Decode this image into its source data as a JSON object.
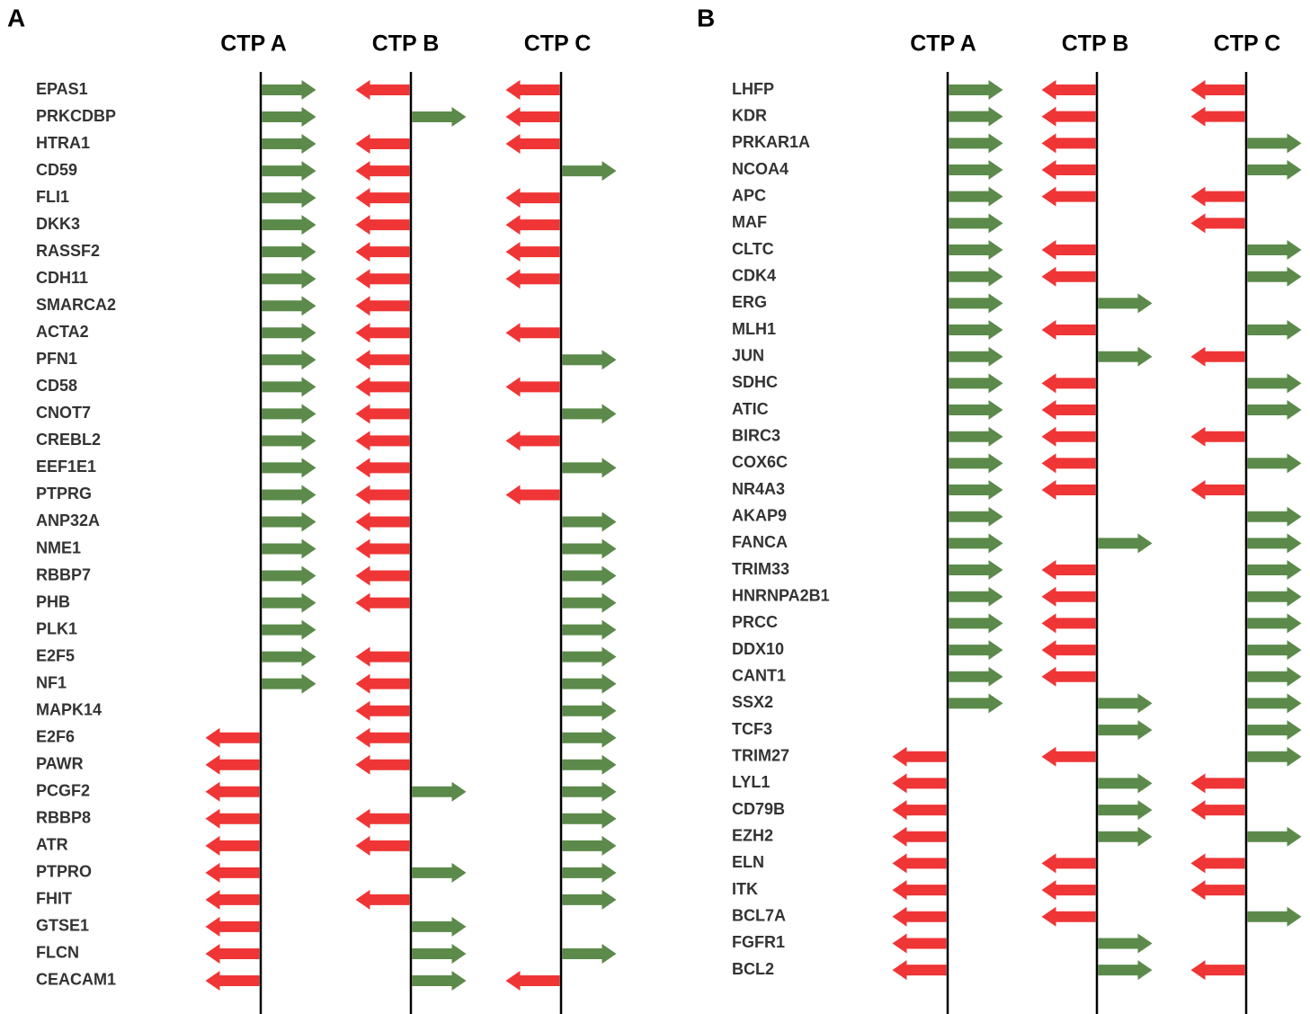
{
  "colors": {
    "up": "#5b8a4a",
    "down": "#ef3535"
  },
  "panels": [
    {
      "label": "A",
      "columns": [
        "CTP A",
        "CTP B",
        "CTP C"
      ],
      "rows": [
        {
          "gene": "EPAS1",
          "ctp": [
            "up",
            "down",
            "down"
          ]
        },
        {
          "gene": "PRKCDBP",
          "ctp": [
            "up",
            "up",
            "down"
          ]
        },
        {
          "gene": "HTRA1",
          "ctp": [
            "up",
            "down",
            "down"
          ]
        },
        {
          "gene": "CD59",
          "ctp": [
            "up",
            "down",
            "up"
          ]
        },
        {
          "gene": "FLI1",
          "ctp": [
            "up",
            "down",
            "down"
          ]
        },
        {
          "gene": "DKK3",
          "ctp": [
            "up",
            "down",
            "down"
          ]
        },
        {
          "gene": "RASSF2",
          "ctp": [
            "up",
            "down",
            "down"
          ]
        },
        {
          "gene": "CDH11",
          "ctp": [
            "up",
            "down",
            "down"
          ]
        },
        {
          "gene": "SMARCA2",
          "ctp": [
            "up",
            "down",
            null
          ]
        },
        {
          "gene": "ACTA2",
          "ctp": [
            "up",
            "down",
            "down"
          ]
        },
        {
          "gene": "PFN1",
          "ctp": [
            "up",
            "down",
            "up"
          ]
        },
        {
          "gene": "CD58",
          "ctp": [
            "up",
            "down",
            "down"
          ]
        },
        {
          "gene": "CNOT7",
          "ctp": [
            "up",
            "down",
            "up"
          ]
        },
        {
          "gene": "CREBL2",
          "ctp": [
            "up",
            "down",
            "down"
          ]
        },
        {
          "gene": "EEF1E1",
          "ctp": [
            "up",
            "down",
            "up"
          ]
        },
        {
          "gene": "PTPRG",
          "ctp": [
            "up",
            "down",
            "down"
          ]
        },
        {
          "gene": "ANP32A",
          "ctp": [
            "up",
            "down",
            "up"
          ]
        },
        {
          "gene": "NME1",
          "ctp": [
            "up",
            "down",
            "up"
          ]
        },
        {
          "gene": "RBBP7",
          "ctp": [
            "up",
            "down",
            "up"
          ]
        },
        {
          "gene": "PHB",
          "ctp": [
            "up",
            "down",
            "up"
          ]
        },
        {
          "gene": "PLK1",
          "ctp": [
            "up",
            null,
            "up"
          ]
        },
        {
          "gene": "E2F5",
          "ctp": [
            "up",
            "down",
            "up"
          ]
        },
        {
          "gene": "NF1",
          "ctp": [
            "up",
            "down",
            "up"
          ]
        },
        {
          "gene": "MAPK14",
          "ctp": [
            null,
            "down",
            "up"
          ]
        },
        {
          "gene": "E2F6",
          "ctp": [
            "down",
            "down",
            "up"
          ]
        },
        {
          "gene": "PAWR",
          "ctp": [
            "down",
            "down",
            "up"
          ]
        },
        {
          "gene": "PCGF2",
          "ctp": [
            "down",
            "up",
            "up"
          ]
        },
        {
          "gene": "RBBP8",
          "ctp": [
            "down",
            "down",
            "up"
          ]
        },
        {
          "gene": "ATR",
          "ctp": [
            "down",
            "down",
            "up"
          ]
        },
        {
          "gene": "PTPRO",
          "ctp": [
            "down",
            "up",
            "up"
          ]
        },
        {
          "gene": "FHIT",
          "ctp": [
            "down",
            "down",
            "up"
          ]
        },
        {
          "gene": "GTSE1",
          "ctp": [
            "down",
            "up",
            null
          ]
        },
        {
          "gene": "FLCN",
          "ctp": [
            "down",
            "up",
            "up"
          ]
        },
        {
          "gene": "CEACAM1",
          "ctp": [
            "down",
            "up",
            "down"
          ]
        }
      ]
    },
    {
      "label": "B",
      "columns": [
        "CTP A",
        "CTP B",
        "CTP C"
      ],
      "rows": [
        {
          "gene": "LHFP",
          "ctp": [
            "up",
            "down",
            "down"
          ]
        },
        {
          "gene": "KDR",
          "ctp": [
            "up",
            "down",
            "down"
          ]
        },
        {
          "gene": "PRKAR1A",
          "ctp": [
            "up",
            "down",
            "up"
          ]
        },
        {
          "gene": "NCOA4",
          "ctp": [
            "up",
            "down",
            "up"
          ]
        },
        {
          "gene": "APC",
          "ctp": [
            "up",
            "down",
            "down"
          ]
        },
        {
          "gene": "MAF",
          "ctp": [
            "up",
            null,
            "down"
          ]
        },
        {
          "gene": "CLTC",
          "ctp": [
            "up",
            "down",
            "up"
          ]
        },
        {
          "gene": "CDK4",
          "ctp": [
            "up",
            "down",
            "up"
          ]
        },
        {
          "gene": "ERG",
          "ctp": [
            "up",
            "up",
            null
          ]
        },
        {
          "gene": "MLH1",
          "ctp": [
            "up",
            "down",
            "up"
          ]
        },
        {
          "gene": "JUN",
          "ctp": [
            "up",
            "up",
            "down"
          ]
        },
        {
          "gene": "SDHC",
          "ctp": [
            "up",
            "down",
            "up"
          ]
        },
        {
          "gene": "ATIC",
          "ctp": [
            "up",
            "down",
            "up"
          ]
        },
        {
          "gene": "BIRC3",
          "ctp": [
            "up",
            "down",
            "down"
          ]
        },
        {
          "gene": "COX6C",
          "ctp": [
            "up",
            "down",
            "up"
          ]
        },
        {
          "gene": "NR4A3",
          "ctp": [
            "up",
            "down",
            "down"
          ]
        },
        {
          "gene": "AKAP9",
          "ctp": [
            "up",
            null,
            "up"
          ]
        },
        {
          "gene": "FANCA",
          "ctp": [
            "up",
            "up",
            "up"
          ]
        },
        {
          "gene": "TRIM33",
          "ctp": [
            "up",
            "down",
            "up"
          ]
        },
        {
          "gene": "HNRNPA2B1",
          "ctp": [
            "up",
            "down",
            "up"
          ]
        },
        {
          "gene": "PRCC",
          "ctp": [
            "up",
            "down",
            "up"
          ]
        },
        {
          "gene": "DDX10",
          "ctp": [
            "up",
            "down",
            "up"
          ]
        },
        {
          "gene": "CANT1",
          "ctp": [
            "up",
            "down",
            "up"
          ]
        },
        {
          "gene": "SSX2",
          "ctp": [
            "up",
            "up",
            "up"
          ]
        },
        {
          "gene": "TCF3",
          "ctp": [
            null,
            "up",
            "up"
          ]
        },
        {
          "gene": "TRIM27",
          "ctp": [
            "down",
            "down",
            "up"
          ]
        },
        {
          "gene": "LYL1",
          "ctp": [
            "down",
            "up",
            "down"
          ]
        },
        {
          "gene": "CD79B",
          "ctp": [
            "down",
            "up",
            "down"
          ]
        },
        {
          "gene": "EZH2",
          "ctp": [
            "down",
            "up",
            "up"
          ]
        },
        {
          "gene": "ELN",
          "ctp": [
            "down",
            "down",
            "down"
          ]
        },
        {
          "gene": "ITK",
          "ctp": [
            "down",
            "down",
            "down"
          ]
        },
        {
          "gene": "BCL7A",
          "ctp": [
            "down",
            "down",
            "up"
          ]
        },
        {
          "gene": "FGFR1",
          "ctp": [
            "down",
            "up",
            null
          ]
        },
        {
          "gene": "BCL2",
          "ctp": [
            "down",
            "up",
            "down"
          ]
        }
      ]
    }
  ]
}
